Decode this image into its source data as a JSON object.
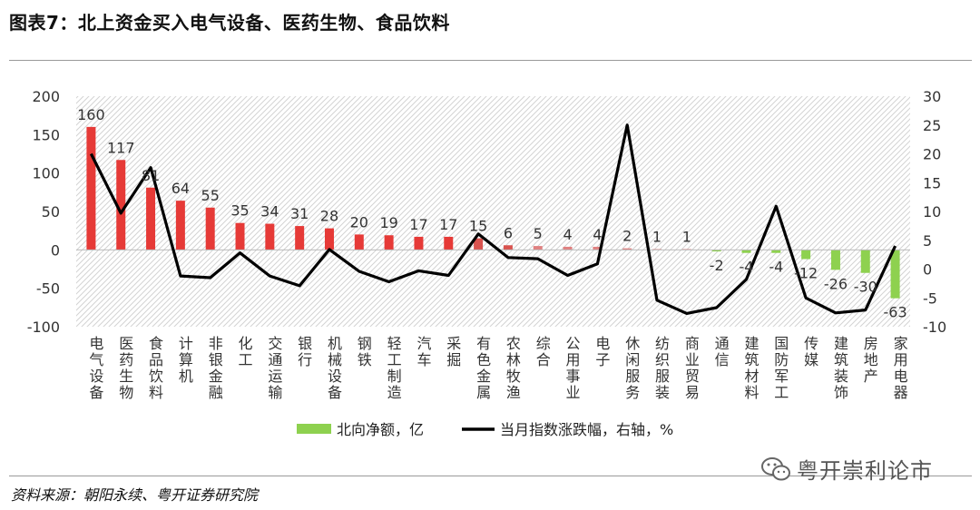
{
  "header": {
    "title": "图表7：北上资金买入电气设备、医药生物、食品饮料"
  },
  "footer": {
    "source": "资料来源：朝阳永续、粤开证券研究院"
  },
  "watermark": {
    "text": "粤开崇利论市",
    "icon": "wechat-icon"
  },
  "colors": {
    "bar_high": "#e63a37",
    "bar_mid": "#d9534f",
    "bar_low": "#e08080",
    "bar_negative": "#8ed14f",
    "line": "#000000",
    "hatch": "#d3d3d3"
  },
  "chart_data": {
    "type": "bar",
    "title": "",
    "categories": [
      "电气设备",
      "医药生物",
      "食品饮料",
      "计算机",
      "非银金融",
      "化工",
      "交通运输",
      "银行",
      "机械设备",
      "钢铁",
      "轻工制造",
      "汽车",
      "采掘",
      "有色金属",
      "农林牧渔",
      "综合",
      "公用事业",
      "电子",
      "休闲服务",
      "纺织服装",
      "商业贸易",
      "通信",
      "建筑材料",
      "国防军工",
      "传媒",
      "建筑装饰",
      "房地产",
      "家用电器"
    ],
    "series": [
      {
        "name": "北向净额，亿",
        "type": "bar",
        "axis": "left",
        "values": [
          160,
          117,
          81,
          64,
          55,
          35,
          34,
          31,
          28,
          20,
          19,
          17,
          17,
          15,
          6,
          5,
          4,
          4,
          2,
          1,
          1,
          -2,
          -4,
          -4,
          -12,
          -26,
          -30,
          -63
        ]
      },
      {
        "name": "当月指数涨跌幅，右轴，%",
        "type": "line",
        "axis": "right",
        "values": [
          20,
          9.7,
          17.6,
          -1.2,
          -1.5,
          2.8,
          -1.2,
          -2.9,
          3.4,
          -0.4,
          -2.2,
          -0.3,
          -1.1,
          6.1,
          2,
          1.8,
          -1.1,
          0.9,
          25,
          -5.4,
          -7.7,
          -6.7,
          -1.8,
          10.9,
          -5,
          -7.6,
          -7.1,
          4
        ]
      }
    ],
    "ylim": [
      -100,
      200
    ],
    "y_ticks": [
      -100,
      -50,
      0,
      50,
      100,
      150,
      200
    ],
    "y2lim": [
      -10,
      30
    ],
    "y2_ticks": [
      -10,
      -5,
      0,
      5,
      10,
      15,
      20,
      25,
      30
    ],
    "legend_position": "bottom",
    "grid": false
  }
}
